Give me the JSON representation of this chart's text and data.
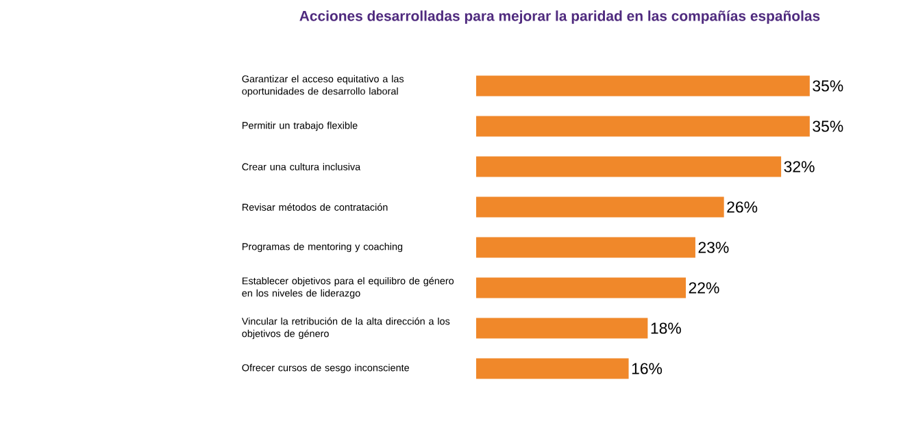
{
  "chart_data": {
    "type": "bar",
    "orientation": "horizontal",
    "title": "Acciones desarrolladas para mejorar la paridad en las compañías españolas",
    "categories": [
      "Garantizar el acceso equitativo a las oportunidades de desarrollo laboral",
      "Permitir un trabajo flexible",
      "Crear una cultura inclusiva",
      "Revisar métodos de contratación",
      "Programas de mentoring y coaching",
      "Establecer objetivos para el equilibro de género en los niveles de liderazgo",
      "Vincular la retribución de la alta dirección a los objetivos de género",
      "Ofrecer cursos de sesgo inconsciente"
    ],
    "values": [
      35,
      35,
      32,
      26,
      23,
      22,
      18,
      16
    ],
    "value_labels": [
      "35%",
      "35%",
      "32%",
      "26%",
      "23%",
      "22%",
      "18%",
      "16%"
    ],
    "color": "#f0882a"
  }
}
